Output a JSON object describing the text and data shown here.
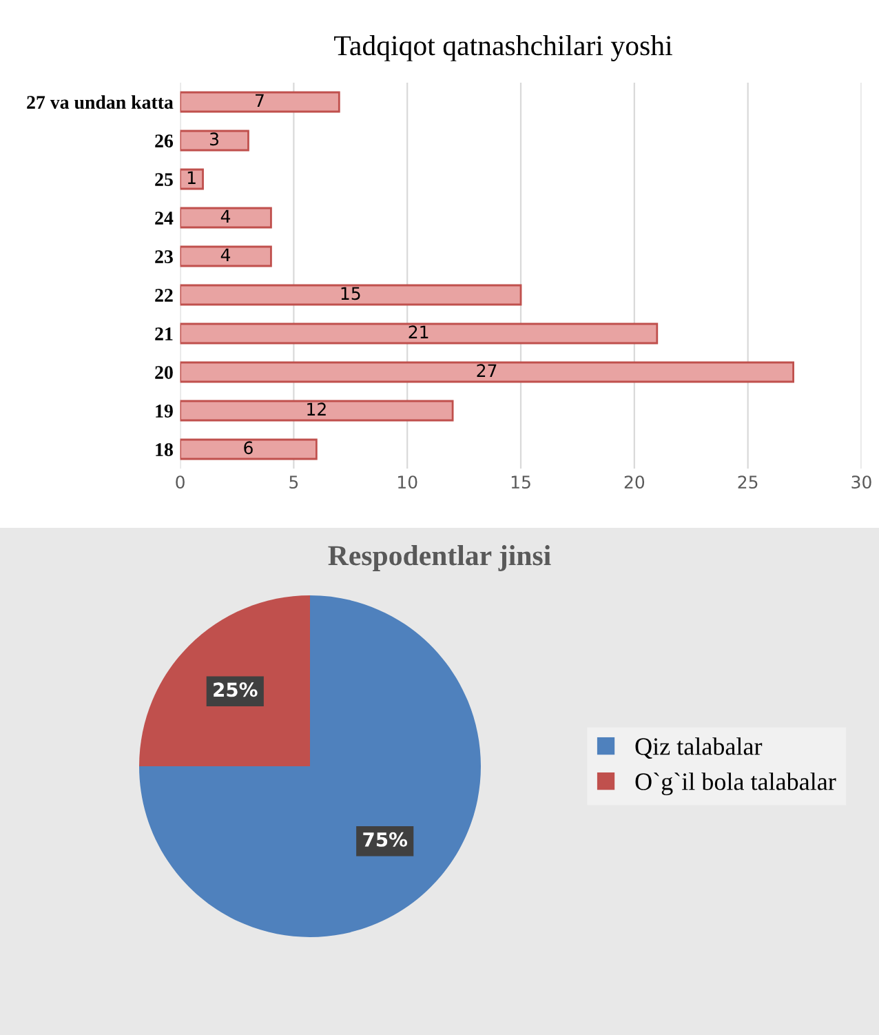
{
  "chart_data": [
    {
      "type": "bar",
      "orientation": "horizontal",
      "title": "Tadqiqot qatnashchilari yoshi",
      "categories": [
        "27 va undan katta",
        "26",
        "25",
        "24",
        "23",
        "22",
        "21",
        "20",
        "19",
        "18"
      ],
      "values": [
        7,
        3,
        1,
        4,
        4,
        15,
        21,
        27,
        12,
        6
      ],
      "color": "#e8a3a2",
      "xlim": [
        0,
        30
      ],
      "xticks": [
        0,
        5,
        10,
        15,
        20,
        25,
        30
      ],
      "grid": "x",
      "data_labels": true
    },
    {
      "type": "pie",
      "title": "Respodentlar jinsi",
      "categories": [
        "Qiz talabalar",
        "O`g`il bola talabalar"
      ],
      "values": [
        75,
        25
      ],
      "colors": [
        "#4f81bd",
        "#c0504d"
      ],
      "value_labels": [
        "75%",
        "25%"
      ],
      "legend": "right"
    }
  ]
}
